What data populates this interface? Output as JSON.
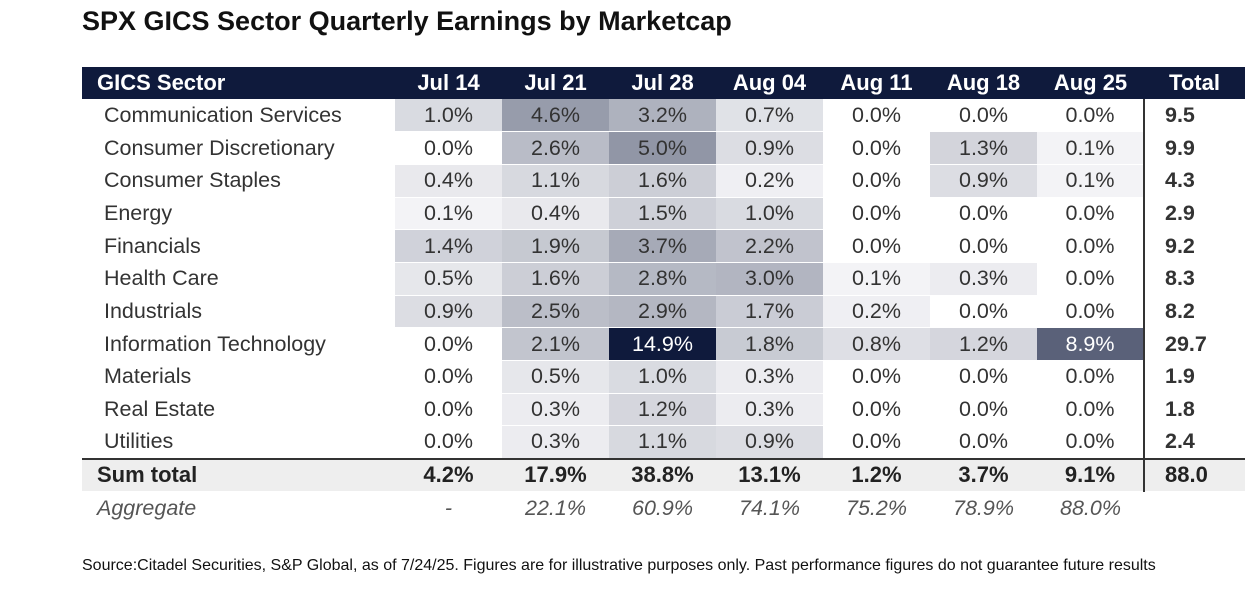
{
  "title": "SPX GICS Sector Quarterly Earnings by Marketcap",
  "source": "Source:Citadel Securities, S&P Global, as of 7/24/25. Figures are for illustrative purposes only. Past performance figures do not guarantee future results",
  "chart_data": {
    "type": "table",
    "title": "SPX GICS Sector Quarterly Earnings by Marketcap",
    "columns": [
      "GICS Sector",
      "Jul 14",
      "Jul 21",
      "Jul 28",
      "Aug 04",
      "Aug 11",
      "Aug 18",
      "Aug 25",
      "Total"
    ],
    "rows": [
      {
        "sector": "Communication Services",
        "values": [
          "1.0%",
          "4.6%",
          "3.2%",
          "0.7%",
          "0.0%",
          "0.0%",
          "0.0%"
        ],
        "total": "9.5"
      },
      {
        "sector": "Consumer Discretionary",
        "values": [
          "0.0%",
          "2.6%",
          "5.0%",
          "0.9%",
          "0.0%",
          "1.3%",
          "0.1%"
        ],
        "total": "9.9"
      },
      {
        "sector": "Consumer Staples",
        "values": [
          "0.4%",
          "1.1%",
          "1.6%",
          "0.2%",
          "0.0%",
          "0.9%",
          "0.1%"
        ],
        "total": "4.3"
      },
      {
        "sector": "Energy",
        "values": [
          "0.1%",
          "0.4%",
          "1.5%",
          "1.0%",
          "0.0%",
          "0.0%",
          "0.0%"
        ],
        "total": "2.9"
      },
      {
        "sector": "Financials",
        "values": [
          "1.4%",
          "1.9%",
          "3.7%",
          "2.2%",
          "0.0%",
          "0.0%",
          "0.0%"
        ],
        "total": "9.2"
      },
      {
        "sector": "Health Care",
        "values": [
          "0.5%",
          "1.6%",
          "2.8%",
          "3.0%",
          "0.1%",
          "0.3%",
          "0.0%"
        ],
        "total": "8.3"
      },
      {
        "sector": "Industrials",
        "values": [
          "0.9%",
          "2.5%",
          "2.9%",
          "1.7%",
          "0.2%",
          "0.0%",
          "0.0%"
        ],
        "total": "8.2"
      },
      {
        "sector": "Information Technology",
        "values": [
          "0.0%",
          "2.1%",
          "14.9%",
          "1.8%",
          "0.8%",
          "1.2%",
          "8.9%"
        ],
        "total": "29.7"
      },
      {
        "sector": "Materials",
        "values": [
          "0.0%",
          "0.5%",
          "1.0%",
          "0.3%",
          "0.0%",
          "0.0%",
          "0.0%"
        ],
        "total": "1.9"
      },
      {
        "sector": "Real Estate",
        "values": [
          "0.0%",
          "0.3%",
          "1.2%",
          "0.3%",
          "0.0%",
          "0.0%",
          "0.0%"
        ],
        "total": "1.8"
      },
      {
        "sector": "Utilities",
        "values": [
          "0.0%",
          "0.3%",
          "1.1%",
          "0.9%",
          "0.0%",
          "0.0%",
          "0.0%"
        ],
        "total": "2.4"
      }
    ],
    "sum_total": {
      "label": "Sum total",
      "values": [
        "4.2%",
        "17.9%",
        "38.8%",
        "13.1%",
        "1.2%",
        "3.7%",
        "9.1%"
      ],
      "total": "88.0"
    },
    "aggregate": {
      "label": "Aggregate",
      "values": [
        "-",
        "22.1%",
        "60.9%",
        "74.1%",
        "75.2%",
        "78.9%",
        "88.0%"
      ],
      "total": ""
    },
    "colors": {
      "header_bg": "#0f1a3c",
      "heat_max": "#0f1a3c",
      "heat_min": "#ffffff",
      "sum_row_bg": "#eeeeee"
    }
  }
}
